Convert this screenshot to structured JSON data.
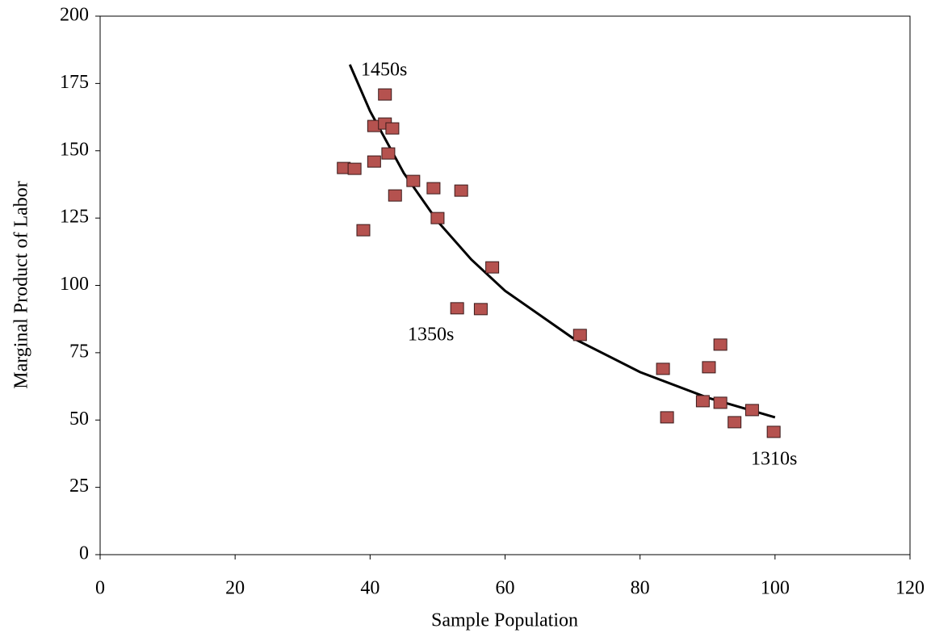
{
  "chart_data": {
    "type": "scatter",
    "x_label": "Sample Population",
    "y_label": "Marginal Product of Labor",
    "xlim": [
      0,
      120
    ],
    "xticks": [
      0,
      20,
      40,
      60,
      80,
      100,
      120
    ],
    "ylim": [
      0,
      200
    ],
    "yticks": [
      0,
      25,
      50,
      75,
      100,
      125,
      150,
      175,
      200
    ],
    "grid": false,
    "points": {
      "color": "#b5524f",
      "x": [
        36.1,
        37.7,
        39.0,
        40.6,
        40.6,
        42.2,
        42.2,
        43.3,
        43.7,
        42.7,
        46.4,
        49.4,
        53.5,
        50.0,
        58.1,
        52.9,
        56.4,
        71.1,
        83.4,
        84.0,
        90.2,
        91.9,
        89.3,
        91.9,
        94.0,
        96.6,
        99.8
      ],
      "y": [
        143.6,
        143.3,
        120.5,
        159.2,
        146,
        170.9,
        160.1,
        158.3,
        133.4,
        149,
        138.8,
        136.1,
        135.2,
        125,
        106.7,
        91.5,
        91.2,
        81.6,
        69,
        51,
        69.6,
        78,
        57,
        56.4,
        49.2,
        53.7,
        45.6
      ]
    },
    "trend": {
      "color": "#000000",
      "x": [
        37,
        40,
        45,
        50,
        55,
        60,
        70,
        80,
        90,
        100
      ],
      "y": [
        182,
        164.7,
        141.7,
        123.8,
        109.6,
        98.0,
        80.5,
        67.8,
        58.3,
        51.0
      ]
    },
    "annotations": [
      "1450s",
      "1350s",
      "1310s"
    ]
  }
}
